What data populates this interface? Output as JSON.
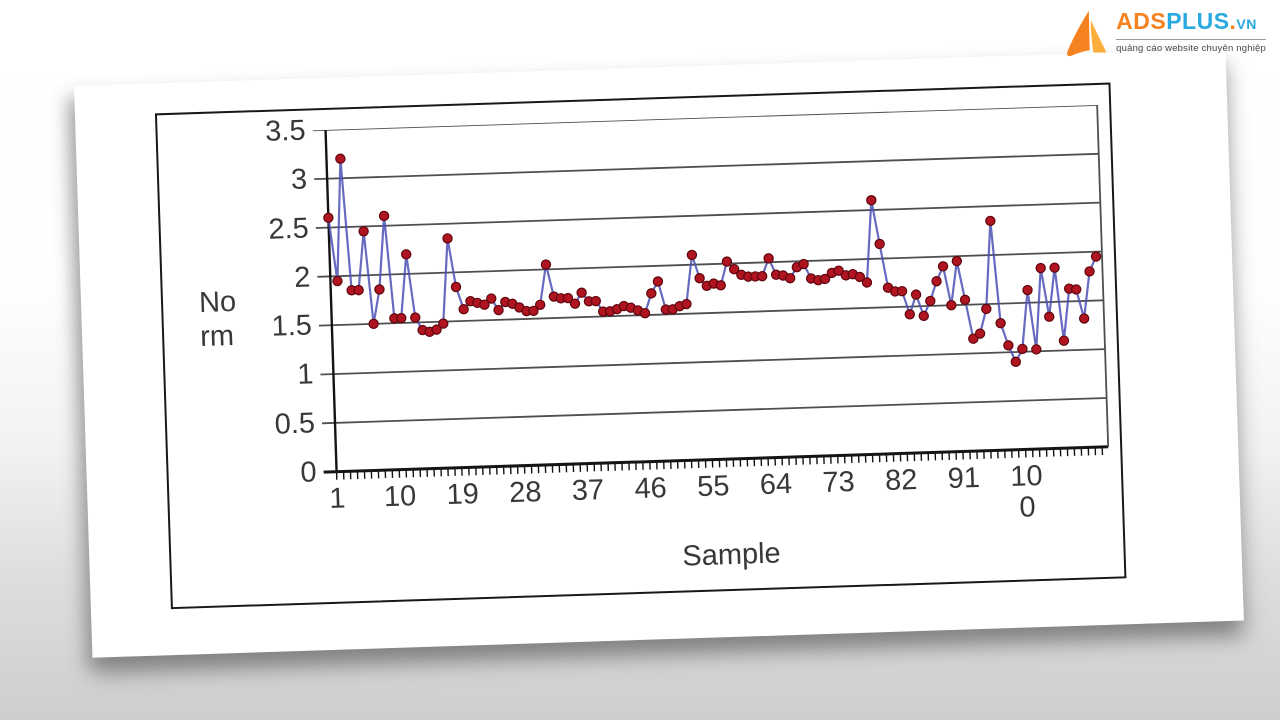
{
  "watermark": {
    "brand_ads": "ADS",
    "brand_plus": "PLUS",
    "brand_dot": ".",
    "brand_vn": "VN",
    "tagline": "quảng cáo website chuyên nghiệp",
    "colors": {
      "orange": "#F58220",
      "yellow": "#FBAE3C",
      "blue": "#29A9E0",
      "tagline_gray": "#4a4a4b"
    }
  },
  "chart_data": {
    "type": "line",
    "title": "",
    "xlabel": "Sample",
    "ylabel": "Norm",
    "ylabel_display": "No\nrm",
    "ylim": [
      0,
      3.5
    ],
    "yticks": [
      "3.5",
      "3",
      "2.5",
      "2",
      "1.5",
      "1",
      "0.5",
      "0"
    ],
    "xtick_labels": [
      "1",
      "10",
      "19",
      "28",
      "37",
      "46",
      "55",
      "64",
      "73",
      "82",
      "91",
      "100"
    ],
    "xtick_interval": 9,
    "grid": true,
    "legend": "none",
    "line_color": "#4b51b5",
    "marker_color": "#b01420",
    "marker_edge": "#5e060c",
    "grid_color": "#4f4f4f",
    "axis_color": "#141414",
    "values": [
      2.6,
      1.95,
      3.2,
      1.85,
      1.85,
      2.45,
      1.5,
      1.85,
      2.6,
      1.55,
      1.55,
      2.2,
      1.55,
      1.42,
      1.4,
      1.42,
      1.48,
      2.35,
      1.85,
      1.62,
      1.7,
      1.68,
      1.66,
      1.72,
      1.6,
      1.68,
      1.66,
      1.62,
      1.58,
      1.58,
      1.64,
      2.05,
      1.72,
      1.7,
      1.7,
      1.64,
      1.75,
      1.66,
      1.66,
      1.55,
      1.55,
      1.57,
      1.6,
      1.58,
      1.55,
      1.52,
      1.72,
      1.84,
      1.55,
      1.55,
      1.58,
      1.6,
      2.1,
      1.86,
      1.78,
      1.8,
      1.78,
      2.02,
      1.94,
      1.88,
      1.86,
      1.86,
      1.86,
      2.04,
      1.87,
      1.86,
      1.83,
      1.94,
      1.97,
      1.82,
      1.8,
      1.81,
      1.87,
      1.89,
      1.84,
      1.85,
      1.82,
      1.76,
      2.6,
      2.15,
      1.7,
      1.66,
      1.66,
      1.42,
      1.62,
      1.4,
      1.55,
      1.75,
      1.9,
      1.5,
      1.95,
      1.55,
      1.15,
      1.2,
      1.45,
      2.35,
      1.3,
      1.07,
      0.9,
      1.03,
      1.63,
      1.02,
      1.85,
      1.35,
      1.85,
      1.1,
      1.63,
      1.62,
      1.32,
      1.8,
      1.95
    ]
  }
}
